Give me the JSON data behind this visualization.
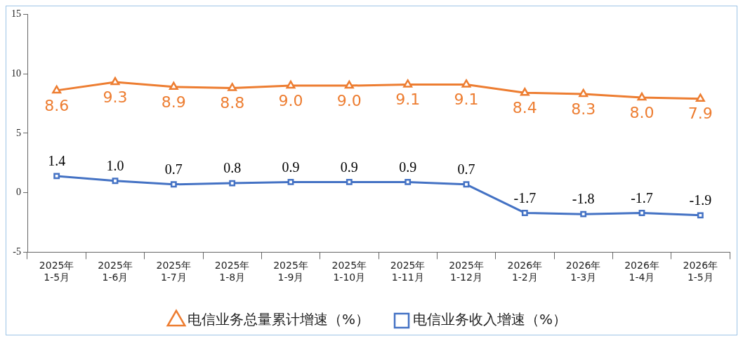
{
  "chart_data": {
    "type": "line",
    "categories": [
      "2025年\n1-5月",
      "2025年\n1-6月",
      "2025年\n1-7月",
      "2025年\n1-8月",
      "2025年\n1-9月",
      "2025年\n1-10月",
      "2025年\n1-11月",
      "2025年\n1-12月",
      "2026年\n1-2月",
      "2026年\n1-3月",
      "2026年\n1-4月",
      "2026年\n1-5月"
    ],
    "series": [
      {
        "name": "电信业务总量累计增速（%）",
        "color": "#ed7d31",
        "marker": "triangle",
        "values": [
          8.6,
          9.3,
          8.9,
          8.8,
          9.0,
          9.0,
          9.1,
          9.1,
          8.4,
          8.3,
          8.0,
          7.9
        ],
        "value_labels": [
          "8.6",
          "9.3",
          "8.9",
          "8.8",
          "9.0",
          "9.0",
          "9.1",
          "9.1",
          "8.4",
          "8.3",
          "8.0",
          "7.9"
        ]
      },
      {
        "name": "电信业务收入增速（%）",
        "color": "#4472c4",
        "marker": "square",
        "values": [
          1.4,
          1.0,
          0.7,
          0.8,
          0.9,
          0.9,
          0.9,
          0.7,
          -1.7,
          -1.8,
          -1.7,
          -1.9
        ],
        "value_labels": [
          "1.4",
          "1.0",
          "0.7",
          "0.8",
          "0.9",
          "0.9",
          "0.9",
          "0.7",
          "-1.7",
          "-1.8",
          "-1.7",
          "-1.9"
        ]
      }
    ],
    "ylim": [
      -5,
      15
    ],
    "yticks": [
      -5,
      0,
      5,
      10,
      15
    ],
    "grid": false,
    "legend": "bottom",
    "line_style": "solid"
  }
}
